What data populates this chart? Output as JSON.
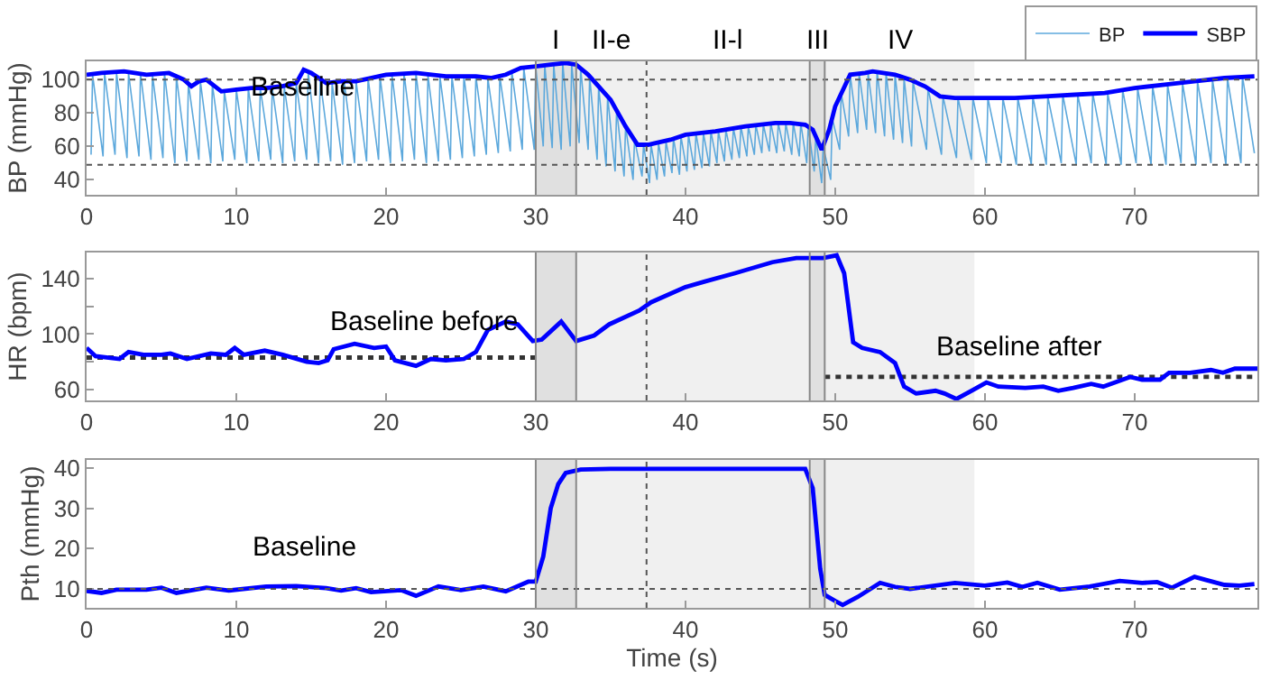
{
  "chart_data": [
    {
      "type": "line",
      "ylabel": "BP (mmHg)",
      "xlim": [
        0,
        78.2
      ],
      "xticks": [
        0,
        10,
        20,
        30,
        40,
        50,
        60,
        70
      ],
      "ylim": [
        31,
        111
      ],
      "yticks": [
        40,
        60,
        80,
        100
      ],
      "legend": "top right",
      "annotations": [
        "Baseline"
      ],
      "bands": [
        {
          "axis": "x",
          "from": 30,
          "to": 32.7,
          "label": "I",
          "color": "#e0e0e0"
        },
        {
          "axis": "x",
          "from": 32.7,
          "to": 37.4,
          "label": "II-e",
          "color": "#f0f0f0"
        },
        {
          "axis": "x",
          "from": 37.4,
          "to": 48.3,
          "label": "II-l",
          "color": "#f0f0f0"
        },
        {
          "axis": "x",
          "from": 48.3,
          "to": 49.3,
          "label": "III",
          "color": "#e0e0e0"
        },
        {
          "axis": "x",
          "from": 49.3,
          "to": 59.3,
          "label": "IV",
          "color": "#f0f0f0"
        }
      ],
      "ref_lines": [
        {
          "axis": "y",
          "value": 100,
          "color": "#555555",
          "line_style": "dotted"
        },
        {
          "axis": "y",
          "value": 49,
          "color": "#555555",
          "line_style": "dotted"
        },
        {
          "axis": "x",
          "value": 37.4,
          "color": "#555555",
          "line_style": "dotted"
        },
        {
          "axis": "x",
          "value": 30,
          "color": "#888888",
          "line_style": "solid"
        },
        {
          "axis": "x",
          "value": 32.7,
          "color": "#888888",
          "line_style": "solid"
        },
        {
          "axis": "x",
          "value": 48.3,
          "color": "#888888",
          "line_style": "solid"
        },
        {
          "axis": "x",
          "value": 49.3,
          "color": "#888888",
          "line_style": "solid"
        }
      ],
      "series": [
        {
          "name": "BP",
          "color": "#5ca8dc",
          "x": [
            0.3,
            0.4,
            1.1,
            1.2,
            1.9,
            2.0,
            2.7,
            2.8,
            3.5,
            3.6,
            4.3,
            4.4,
            5.1,
            5.2,
            5.9,
            6.0,
            6.7,
            6.8,
            7.5,
            7.6,
            8.3,
            8.4,
            9.1,
            9.2,
            9.9,
            10.0,
            10.7,
            10.8,
            11.5,
            11.6,
            12.3,
            12.4,
            13.1,
            13.2,
            13.9,
            14.0,
            14.7,
            14.8,
            15.5,
            15.6,
            16.3,
            16.4,
            17.1,
            17.2,
            17.9,
            18.0,
            18.7,
            18.8,
            19.5,
            19.6,
            20.3,
            20.4,
            21.1,
            21.2,
            21.9,
            22.0,
            22.7,
            22.8,
            23.5,
            23.6,
            24.3,
            24.4,
            25.1,
            25.2,
            25.9,
            26.0,
            26.7,
            26.8,
            27.5,
            27.6,
            28.3,
            28.4,
            29.1,
            29.2,
            29.9,
            30.0,
            30.5,
            30.6,
            31.1,
            31.2,
            31.7,
            31.8,
            32.3,
            32.4,
            32.9,
            33.0,
            33.5,
            33.6,
            34.1,
            34.2,
            34.7,
            34.8,
            35.3,
            35.4,
            35.9,
            36.0,
            36.5,
            36.6,
            37.1,
            37.2,
            37.6,
            37.7,
            38.1,
            38.2,
            38.6,
            38.7,
            39.1,
            39.2,
            39.6,
            39.7,
            40.1,
            40.2,
            40.6,
            40.7,
            41.1,
            41.2,
            41.6,
            41.7,
            42.1,
            42.2,
            42.6,
            42.7,
            43.1,
            43.2,
            43.6,
            43.7,
            44.1,
            44.2,
            44.6,
            44.7,
            45.1,
            45.2,
            45.6,
            45.7,
            46.1,
            46.2,
            46.6,
            46.7,
            47.1,
            47.2,
            47.6,
            47.7,
            48.1,
            48.2,
            48.6,
            48.7,
            49.1,
            49.2,
            49.7,
            49.8,
            50.3,
            50.4,
            50.9,
            51.0,
            51.5,
            51.6,
            52.1,
            52.2,
            52.7,
            52.8,
            53.3,
            53.4,
            53.9,
            54.0,
            54.5,
            54.6,
            55.1,
            55.2,
            56.1,
            56.2,
            57.1,
            57.2,
            58.1,
            58.2,
            59.1,
            59.2,
            60.1,
            60.2,
            61.1,
            61.2,
            62.1,
            62.2,
            63.1,
            63.2,
            64.1,
            64.2,
            65.1,
            65.2,
            66.1,
            66.2,
            67.1,
            67.2,
            68.1,
            68.2,
            69.1,
            69.2,
            70.1,
            70.2,
            71.1,
            71.2,
            72.1,
            72.2,
            73.1,
            73.2,
            74.1,
            74.2,
            75.1,
            75.2,
            76.1,
            76.2,
            77.1,
            77.2,
            78.0
          ],
          "values": [
            55,
            103,
            54,
            104,
            55,
            104,
            53,
            104,
            54,
            104,
            52,
            103,
            53,
            104,
            50,
            102,
            51,
            98,
            52,
            99,
            50,
            97,
            51,
            93,
            52,
            94,
            50,
            95,
            51,
            95,
            52,
            95,
            50,
            96,
            51,
            98,
            52,
            105,
            50,
            100,
            51,
            98,
            49,
            99,
            50,
            99,
            51,
            101,
            52,
            102,
            50,
            103,
            51,
            104,
            52,
            104,
            50,
            103,
            51,
            102,
            52,
            102,
            53,
            102,
            54,
            102,
            55,
            101,
            56,
            102,
            57,
            105,
            58,
            107,
            58,
            108,
            60,
            109,
            59,
            109,
            58,
            110,
            60,
            109,
            62,
            107,
            58,
            102,
            52,
            96,
            48,
            90,
            45,
            82,
            42,
            72,
            40,
            64,
            42,
            61,
            38,
            61,
            40,
            62,
            42,
            63,
            44,
            65,
            43,
            66,
            45,
            67,
            46,
            68,
            47,
            68,
            48,
            69,
            50,
            69,
            51,
            70,
            52,
            71,
            53,
            72,
            54,
            72,
            55,
            73,
            56,
            73,
            57,
            74,
            56,
            74,
            57,
            74,
            55,
            74,
            54,
            74,
            50,
            72,
            45,
            66,
            38,
            60,
            40,
            77,
            58,
            92,
            66,
            103,
            68,
            104,
            70,
            104,
            68,
            105,
            66,
            104,
            64,
            103,
            62,
            101,
            60,
            99,
            58,
            95,
            55,
            90,
            53,
            89,
            52,
            89,
            50,
            89,
            50,
            89,
            49,
            89,
            49,
            90,
            49,
            90,
            50,
            91,
            49,
            91,
            50,
            92,
            49,
            92,
            49,
            94,
            50,
            95,
            49,
            96,
            49,
            97,
            50,
            98,
            49,
            99,
            50,
            100,
            49,
            101,
            50,
            102,
            56
          ]
        },
        {
          "name": "SBP",
          "color": "#0000ff",
          "x": [
            0,
            1,
            2.5,
            4,
            5.5,
            6.5,
            7,
            7.5,
            8,
            9,
            10,
            11,
            12,
            13,
            14,
            14.5,
            15,
            16,
            17,
            18,
            20,
            22,
            24,
            26,
            27,
            28,
            29,
            30,
            31,
            32,
            32.7,
            33.5,
            35,
            36,
            36.8,
            37.5,
            38,
            39,
            40,
            42,
            44,
            46,
            47,
            48,
            48.5,
            49.1,
            49.6,
            50,
            51,
            52,
            52.5,
            54,
            55,
            56,
            57,
            58,
            60,
            62,
            64,
            66,
            68,
            70,
            72,
            74,
            76,
            78
          ],
          "values": [
            103,
            104,
            105,
            103,
            104,
            100,
            96,
            99,
            100,
            93,
            94,
            95,
            95,
            96,
            98,
            106,
            104,
            98,
            99,
            99,
            103,
            104,
            102,
            102,
            101,
            103,
            107,
            108,
            109,
            110,
            109,
            103,
            88,
            72,
            61,
            61,
            62,
            64,
            67,
            69,
            72,
            74,
            74,
            73,
            70,
            58,
            70,
            84,
            103,
            104,
            105,
            103,
            100,
            96,
            90,
            89,
            89,
            89,
            90,
            91,
            92,
            95,
            97,
            99,
            101,
            102
          ]
        }
      ]
    },
    {
      "type": "line",
      "ylabel": "HR (bpm)",
      "xlim": [
        0,
        78.2
      ],
      "xticks": [
        0,
        10,
        20,
        30,
        40,
        50,
        60,
        70
      ],
      "ylim": [
        52,
        159
      ],
      "yticks": [
        60,
        {
          "value": 80,
          "label": null
        },
        100,
        {
          "value": 120,
          "label": null
        },
        140
      ],
      "annotations": [
        "Baseline before",
        "Baseline after"
      ],
      "bands": [
        {
          "axis": "x",
          "from": 30,
          "to": 32.7,
          "color": "#e0e0e0"
        },
        {
          "axis": "x",
          "from": 32.7,
          "to": 48.3,
          "color": "#f0f0f0"
        },
        {
          "axis": "x",
          "from": 48.3,
          "to": 49.3,
          "color": "#e0e0e0"
        },
        {
          "axis": "x",
          "from": 49.3,
          "to": 59.3,
          "color": "#f0f0f0"
        }
      ],
      "ref_lines": [
        {
          "axis": "x",
          "value": 37.4,
          "color": "#555555",
          "line_style": "dotted"
        },
        {
          "axis": "x",
          "value": 30,
          "color": "#888888",
          "line_style": "solid"
        },
        {
          "axis": "x",
          "value": 32.7,
          "color": "#888888",
          "line_style": "solid"
        },
        {
          "axis": "x",
          "value": 48.3,
          "color": "#888888",
          "line_style": "solid"
        },
        {
          "axis": "x",
          "value": 49.3,
          "color": "#888888",
          "line_style": "solid"
        }
      ],
      "series": [
        {
          "color": "#333333",
          "line_style": "dotted",
          "x": [
            0,
            30
          ],
          "values": [
            83,
            83
          ]
        },
        {
          "color": "#333333",
          "line_style": "dotted",
          "x": [
            49.3,
            78.2
          ],
          "values": [
            69,
            69
          ]
        },
        {
          "color": "#0000ff",
          "x": [
            0,
            0.6,
            2.2,
            2.8,
            3.8,
            5,
            5.6,
            6.7,
            8.3,
            9.3,
            9.9,
            10.5,
            11.9,
            13.1,
            14.7,
            15.5,
            16.1,
            16.5,
            17.9,
            19.2,
            20,
            20.6,
            22,
            23,
            24,
            25.2,
            26,
            26.8,
            28,
            28.8,
            29.8,
            30.4,
            31.7,
            32.7,
            33.9,
            34.9,
            36.9,
            37.7,
            40,
            41.3,
            43.3,
            45.8,
            47.4,
            49.2,
            50.1,
            50.6,
            51.2,
            51.8,
            53,
            54,
            54.6,
            55.4,
            56.7,
            57.3,
            58.1,
            59.1,
            60.1,
            60.9,
            62.7,
            63.9,
            64.9,
            65.9,
            67.1,
            67.9,
            69.7,
            70.5,
            71.7,
            72.3,
            73.7,
            75.1,
            75.9,
            76.7,
            78.2
          ],
          "values": [
            90,
            84,
            82,
            87,
            85,
            85,
            86,
            82,
            86,
            85,
            90,
            85,
            88,
            85,
            80,
            79,
            81,
            89,
            93,
            90,
            91,
            81,
            77,
            82,
            81,
            82,
            87,
            103,
            109,
            107,
            95,
            96,
            109,
            95,
            99,
            107,
            117,
            123,
            134,
            138,
            144,
            152,
            155,
            155,
            157,
            144,
            94,
            90,
            87,
            79,
            62,
            57,
            59,
            57,
            53,
            59,
            65,
            62,
            61,
            62,
            59,
            61,
            64,
            62,
            69,
            67,
            67,
            72,
            72,
            74,
            72,
            75,
            75
          ]
        }
      ]
    },
    {
      "type": "line",
      "ylabel": "Pth (mmHg)",
      "xlabel": "Time (s)",
      "xlim": [
        0,
        78.2
      ],
      "xticks": [
        0,
        10,
        20,
        30,
        40,
        50,
        60,
        70
      ],
      "ylim": [
        5.3,
        42
      ],
      "yticks": [
        10,
        20,
        30,
        40
      ],
      "annotations": [
        "Baseline"
      ],
      "bands": [
        {
          "axis": "x",
          "from": 30,
          "to": 32.7,
          "color": "#e0e0e0"
        },
        {
          "axis": "x",
          "from": 32.7,
          "to": 48.3,
          "color": "#f0f0f0"
        },
        {
          "axis": "x",
          "from": 48.3,
          "to": 49.3,
          "color": "#e0e0e0"
        },
        {
          "axis": "x",
          "from": 49.3,
          "to": 59.3,
          "color": "#f0f0f0"
        }
      ],
      "ref_lines": [
        {
          "axis": "y",
          "value": 10,
          "color": "#555555",
          "line_style": "dotted"
        },
        {
          "axis": "x",
          "value": 37.4,
          "color": "#555555",
          "line_style": "dotted"
        },
        {
          "axis": "x",
          "value": 30,
          "color": "#888888",
          "line_style": "solid"
        },
        {
          "axis": "x",
          "value": 32.7,
          "color": "#888888",
          "line_style": "solid"
        },
        {
          "axis": "x",
          "value": 48.3,
          "color": "#888888",
          "line_style": "solid"
        },
        {
          "axis": "x",
          "value": 49.3,
          "color": "#888888",
          "line_style": "solid"
        }
      ],
      "series": [
        {
          "color": "#0000ff",
          "x": [
            0,
            1,
            2,
            4,
            5,
            6,
            8,
            9.5,
            12,
            14,
            16,
            17,
            18,
            19,
            21,
            22,
            23.5,
            25,
            26.5,
            28,
            29.5,
            30,
            30.5,
            31,
            31.5,
            32,
            33,
            35,
            48,
            48.5,
            49,
            49.3,
            50,
            50.5,
            51.5,
            53,
            54,
            55,
            58,
            60,
            61.5,
            62.5,
            63.5,
            65,
            67,
            69,
            70.5,
            71.5,
            72.5,
            74,
            75,
            76,
            77,
            78
          ],
          "values": [
            9.5,
            9,
            9.8,
            9.8,
            10.3,
            9,
            10.3,
            9.6,
            10.6,
            10.7,
            10.2,
            9.6,
            10.2,
            9.2,
            9.7,
            8.3,
            10.6,
            9.7,
            10.6,
            9.4,
            11.8,
            11.8,
            18,
            30,
            36,
            38.8,
            39.6,
            39.8,
            39.8,
            35,
            15,
            8.5,
            7,
            6,
            8,
            11.5,
            10.5,
            10,
            11.5,
            10.8,
            11.6,
            10.5,
            11.5,
            9.8,
            10.6,
            12,
            11.5,
            11.7,
            10.3,
            13,
            12,
            11,
            10.8,
            11.2
          ]
        }
      ]
    }
  ]
}
